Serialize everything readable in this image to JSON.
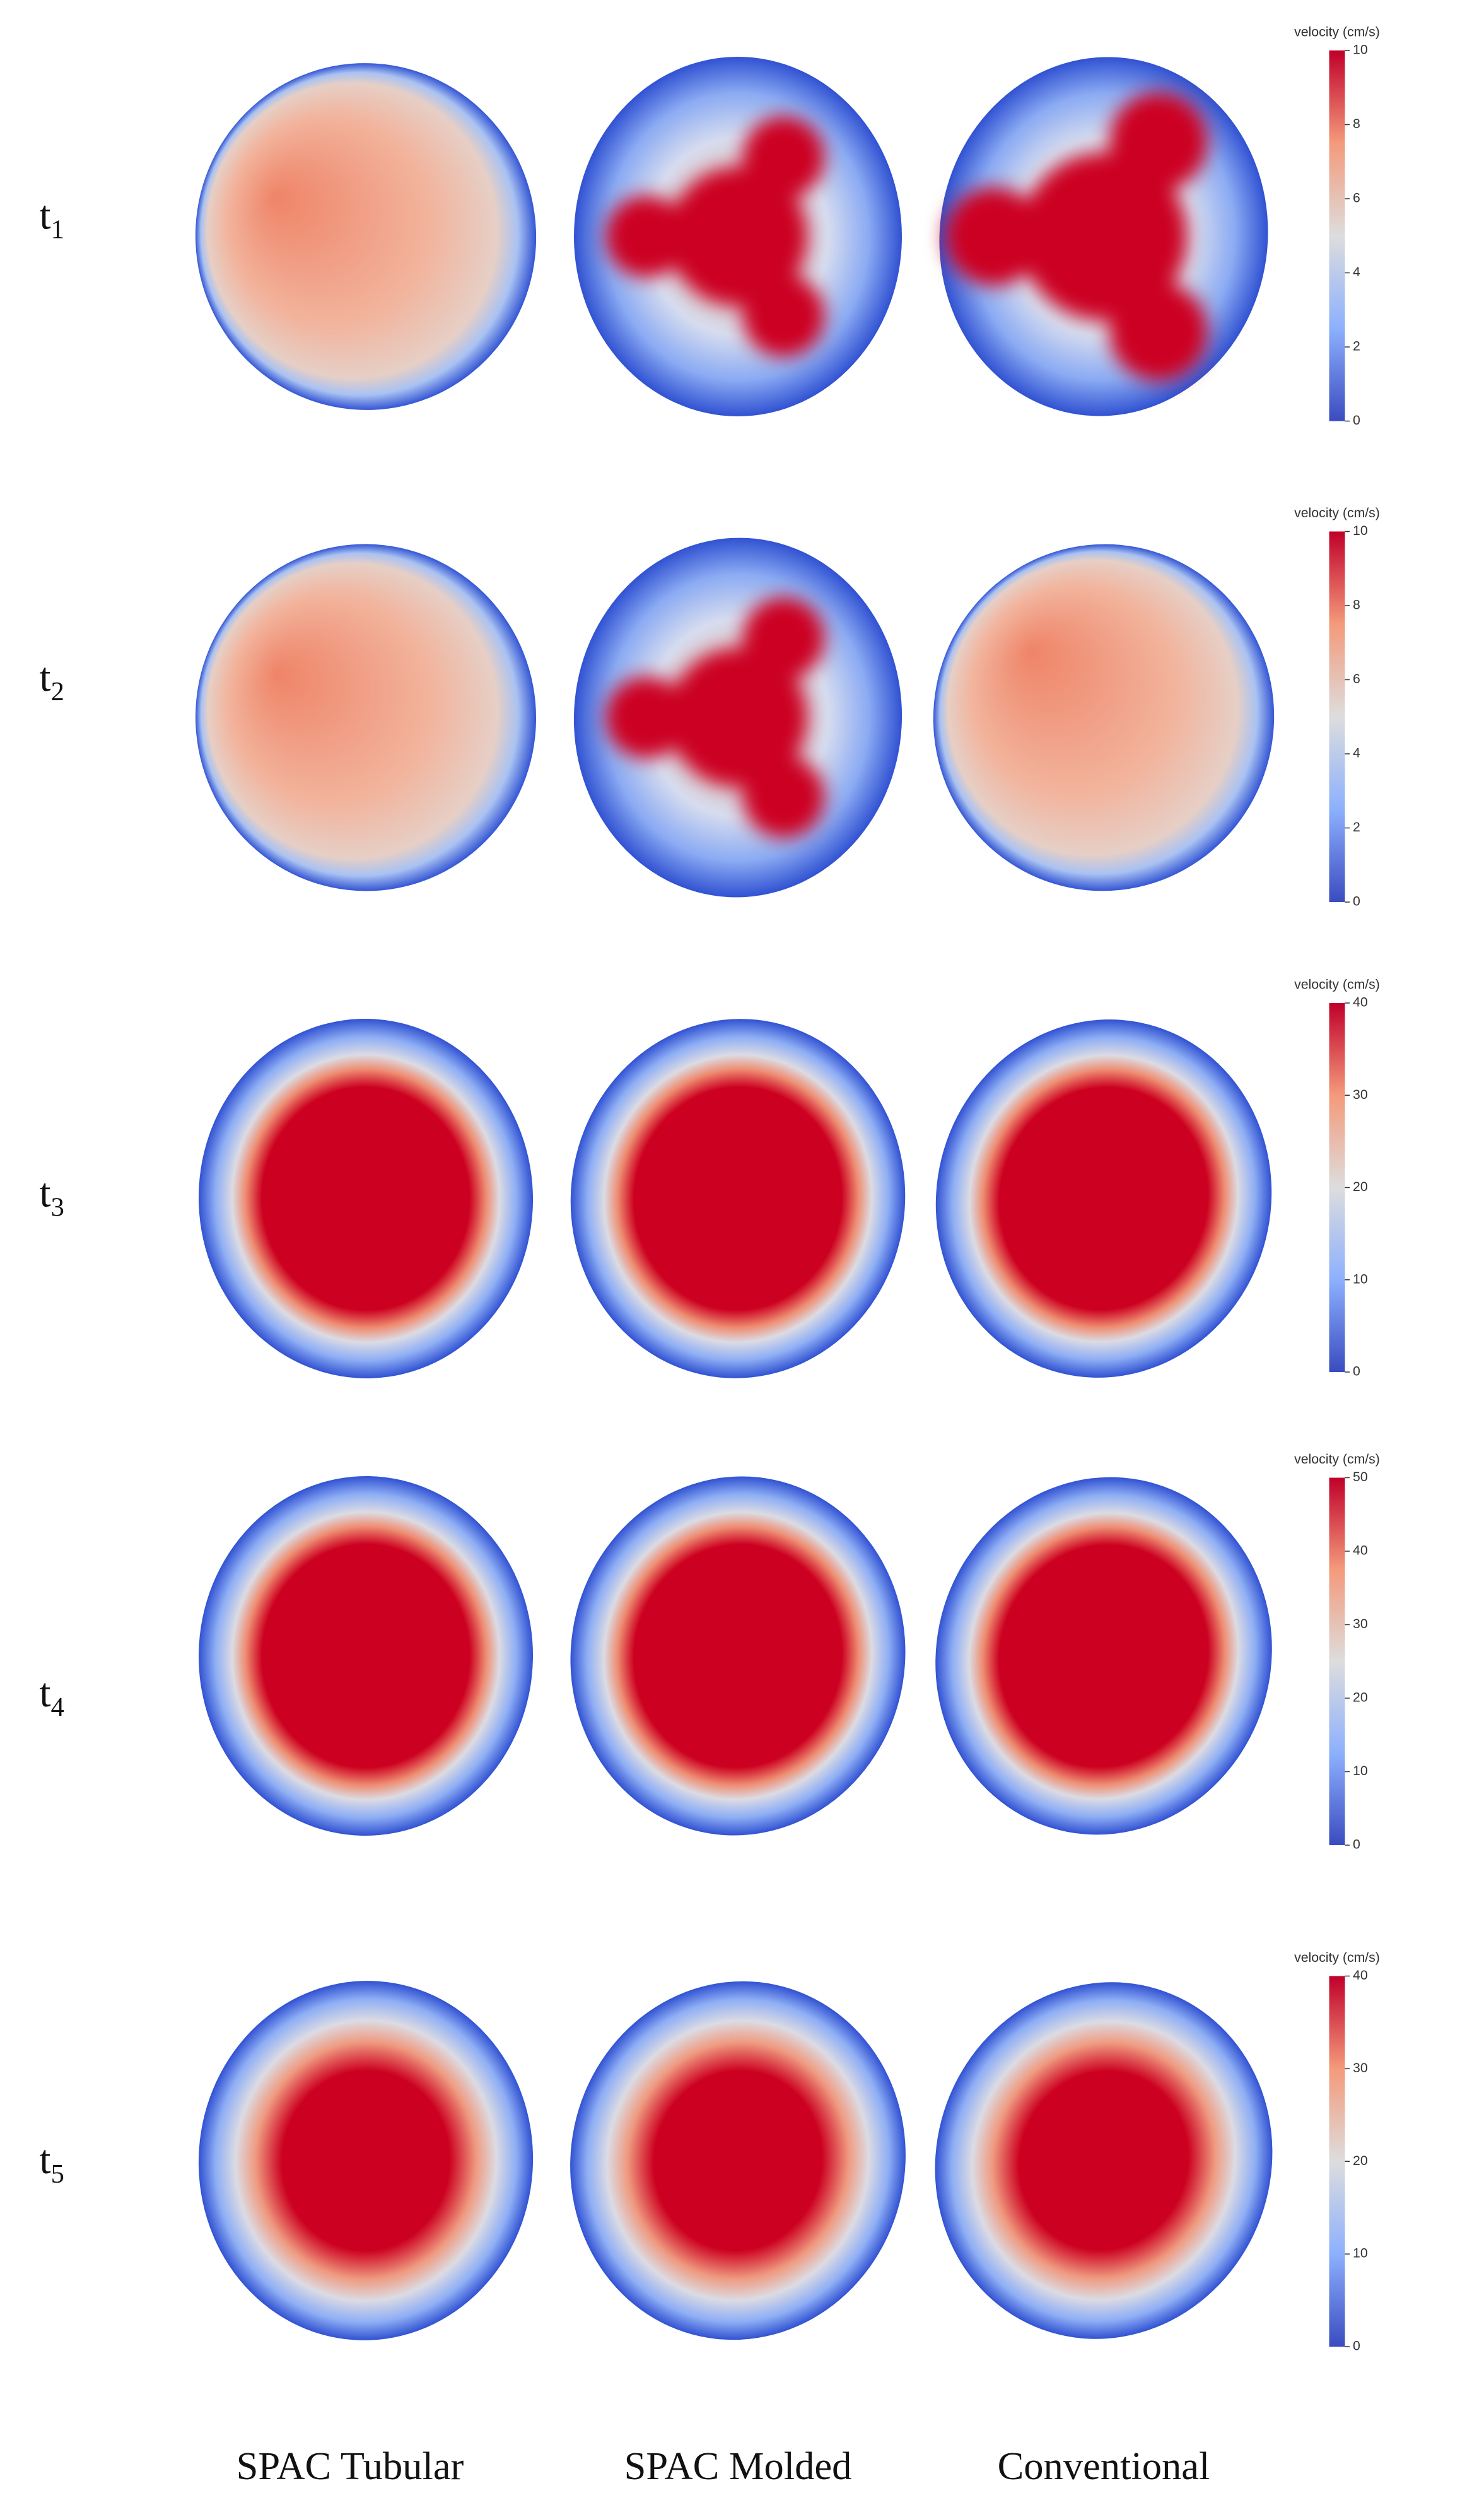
{
  "rows": [
    {
      "label": {
        "base": "t",
        "sub": "1"
      },
      "colorbar": {
        "title": "velocity (cm/s)",
        "lim": [
          0,
          10
        ],
        "ticks": [
          0,
          2,
          4,
          6,
          8,
          10
        ]
      }
    },
    {
      "label": {
        "base": "t",
        "sub": "2"
      },
      "colorbar": {
        "title": "velocity (cm/s)",
        "lim": [
          0,
          10
        ],
        "ticks": [
          0,
          2,
          4,
          6,
          8,
          10
        ]
      }
    },
    {
      "label": {
        "base": "t",
        "sub": "3"
      },
      "colorbar": {
        "title": "velocity (cm/s)",
        "lim": [
          0,
          40
        ],
        "ticks": [
          0,
          10,
          20,
          30,
          40
        ]
      }
    },
    {
      "label": {
        "base": "t",
        "sub": "4"
      },
      "colorbar": {
        "title": "velocity (cm/s)",
        "lim": [
          0,
          50
        ],
        "ticks": [
          0,
          10,
          20,
          30,
          40,
          50
        ]
      }
    },
    {
      "label": {
        "base": "t",
        "sub": "5"
      },
      "colorbar": {
        "title": "velocity (cm/s)",
        "lim": [
          0,
          40
        ],
        "ticks": [
          0,
          10,
          20,
          30,
          40
        ]
      }
    }
  ],
  "columns": [
    "SPAC Tubular",
    "SPAC Molded",
    "Conventional"
  ]
}
